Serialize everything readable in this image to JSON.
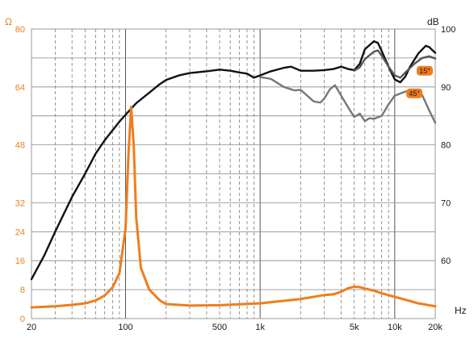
{
  "chart_data": {
    "type": "line",
    "left_axis": {
      "unit": "Ω",
      "range": [
        0,
        80
      ],
      "ticks": [
        "0",
        "8",
        "16",
        "24",
        "32",
        "48",
        "64",
        "80"
      ],
      "color": "#e8801f"
    },
    "right_axis": {
      "unit": "dB",
      "range": [
        50,
        100
      ],
      "ticks": [
        "60",
        "70",
        "80",
        "90",
        "100"
      ],
      "color": "#1a1a1a"
    },
    "x_axis": {
      "unit": "Hz",
      "scale": "log",
      "range": [
        20,
        20000
      ],
      "ticks": [
        {
          "value": 20,
          "label": "20"
        },
        {
          "value": 100,
          "label": "100"
        },
        {
          "value": 500,
          "label": "500"
        },
        {
          "value": 1000,
          "label": "1k"
        },
        {
          "value": 5000,
          "label": "5k"
        },
        {
          "value": 10000,
          "label": "10k"
        },
        {
          "value": 20000,
          "label": "20k"
        }
      ]
    },
    "grid": true,
    "series": [
      {
        "name": "",
        "axis": "right",
        "color": "#111111",
        "points": [
          [
            20,
            56.8
          ],
          [
            25,
            61
          ],
          [
            30,
            65
          ],
          [
            40,
            71
          ],
          [
            50,
            75
          ],
          [
            60,
            78.5
          ],
          [
            70,
            80.8
          ],
          [
            80,
            82.5
          ],
          [
            90,
            84
          ],
          [
            100,
            85.2
          ],
          [
            120,
            87.2
          ],
          [
            150,
            89
          ],
          [
            180,
            90.5
          ],
          [
            200,
            91.2
          ],
          [
            250,
            92
          ],
          [
            300,
            92.4
          ],
          [
            400,
            92.7
          ],
          [
            500,
            93
          ],
          [
            600,
            92.8
          ],
          [
            700,
            92.5
          ],
          [
            800,
            92.3
          ],
          [
            900,
            91.6
          ],
          [
            1000,
            92
          ],
          [
            1200,
            92.7
          ],
          [
            1500,
            93.3
          ],
          [
            1700,
            93.5
          ],
          [
            2000,
            92.8
          ],
          [
            2500,
            92.8
          ],
          [
            3000,
            92.9
          ],
          [
            3500,
            93.1
          ],
          [
            4000,
            93.5
          ],
          [
            4500,
            93.1
          ],
          [
            5000,
            92.9
          ],
          [
            5500,
            94
          ],
          [
            6000,
            96.5
          ],
          [
            7000,
            97.9
          ],
          [
            7500,
            97.6
          ],
          [
            8000,
            96.2
          ],
          [
            9000,
            93.5
          ],
          [
            10000,
            91.3
          ],
          [
            11000,
            90.8
          ],
          [
            12000,
            91.8
          ],
          [
            13000,
            93.5
          ],
          [
            15000,
            95.8
          ],
          [
            17000,
            97.1
          ],
          [
            18000,
            96.9
          ],
          [
            20000,
            95.9
          ]
        ]
      },
      {
        "name": "",
        "axis": "right",
        "color": "#777777",
        "points": [
          [
            1000,
            91.7
          ],
          [
            1200,
            91.4
          ],
          [
            1500,
            90
          ],
          [
            1800,
            89.4
          ],
          [
            2000,
            89.5
          ],
          [
            2500,
            87.5
          ],
          [
            2800,
            87.3
          ],
          [
            3000,
            88
          ],
          [
            3300,
            89.6
          ],
          [
            3600,
            90.3
          ],
          [
            4000,
            88.5
          ],
          [
            4500,
            86.5
          ],
          [
            5000,
            84.8
          ],
          [
            5500,
            85.4
          ],
          [
            6000,
            84.1
          ],
          [
            6500,
            84.6
          ],
          [
            7000,
            84.5
          ],
          [
            8000,
            85
          ],
          [
            9000,
            87
          ],
          [
            10000,
            88.5
          ],
          [
            12000,
            89.2
          ],
          [
            14000,
            89.5
          ],
          [
            16000,
            88.6
          ],
          [
            18000,
            86
          ],
          [
            20000,
            83.8
          ]
        ]
      },
      {
        "name": "",
        "axis": "right",
        "color": "#555555",
        "points": [
          [
            5000,
            92.8
          ],
          [
            5500,
            93.4
          ],
          [
            6000,
            94.8
          ],
          [
            7000,
            96.1
          ],
          [
            7500,
            96.3
          ],
          [
            8000,
            95.4
          ],
          [
            9000,
            93.5
          ],
          [
            10000,
            92
          ],
          [
            11000,
            91.6
          ],
          [
            12000,
            92.5
          ],
          [
            14000,
            94
          ],
          [
            16000,
            95
          ],
          [
            18000,
            95.3
          ],
          [
            20000,
            94.9
          ]
        ]
      },
      {
        "name": "",
        "axis": "left",
        "color": "#f07d1c",
        "points": [
          [
            20,
            3.1
          ],
          [
            30,
            3.4
          ],
          [
            40,
            3.8
          ],
          [
            50,
            4.2
          ],
          [
            60,
            5
          ],
          [
            70,
            6.4
          ],
          [
            80,
            8.6
          ],
          [
            90,
            12.5
          ],
          [
            100,
            25
          ],
          [
            105,
            45
          ],
          [
            110,
            58.5
          ],
          [
            115,
            48
          ],
          [
            120,
            28
          ],
          [
            130,
            14
          ],
          [
            150,
            8
          ],
          [
            180,
            5
          ],
          [
            200,
            4
          ],
          [
            300,
            3.6
          ],
          [
            500,
            3.7
          ],
          [
            1000,
            4.2
          ],
          [
            2000,
            5.4
          ],
          [
            3000,
            6.5
          ],
          [
            3500,
            6.7
          ],
          [
            4000,
            7.4
          ],
          [
            4500,
            8.4
          ],
          [
            5000,
            8.8
          ],
          [
            5500,
            8.7
          ],
          [
            6000,
            8.3
          ],
          [
            7000,
            7.7
          ],
          [
            8000,
            7
          ],
          [
            10000,
            6
          ],
          [
            12000,
            5.2
          ],
          [
            15000,
            4.2
          ],
          [
            20000,
            3.4
          ]
        ]
      }
    ],
    "annotations": [
      {
        "label": "15°",
        "x": 20000,
        "y_db": 92.8
      },
      {
        "label": "45°",
        "x": 14000,
        "y_db": 88.9
      }
    ]
  }
}
